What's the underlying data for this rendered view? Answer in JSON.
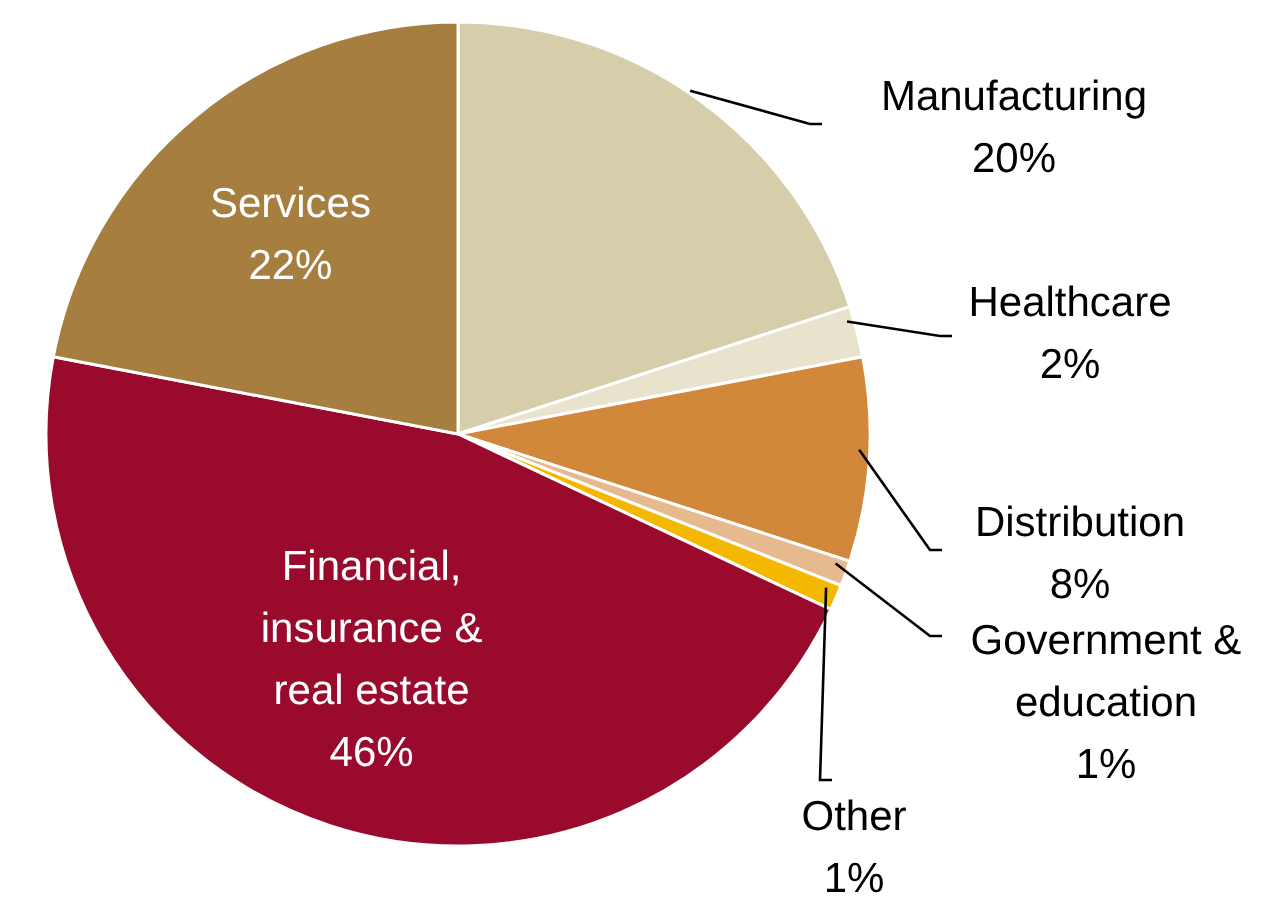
{
  "chart_data": {
    "type": "pie",
    "categories": [
      "Manufacturing",
      "Healthcare",
      "Distribution",
      "Government & education",
      "Other",
      "Financial, insurance & real estate",
      "Services"
    ],
    "values": [
      20,
      2,
      8,
      1,
      1,
      46,
      22
    ],
    "value_labels": [
      "20%",
      "2%",
      "8%",
      "1%",
      "1%",
      "46%",
      "22%"
    ],
    "colors": [
      "#d6cdaa",
      "#e9e3cd",
      "#d2883a",
      "#e6b98f",
      "#f5b800",
      "#990a2c",
      "#a67f40"
    ]
  }
}
